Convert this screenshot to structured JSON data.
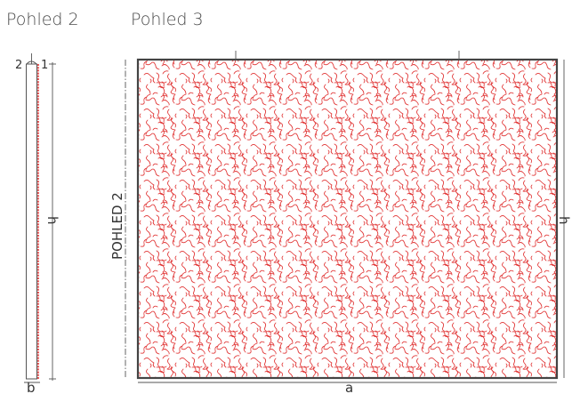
{
  "views": {
    "side": {
      "title": "Pohled 2"
    },
    "front": {
      "title": "Pohled 3"
    }
  },
  "labels": {
    "section_marker": "POHLED 2",
    "layer_left": "2",
    "layer_right": "1",
    "height": "h",
    "thickness": "b",
    "width": "a"
  },
  "colors": {
    "pattern": "#e03030",
    "outline": "#444444",
    "dimension": "#555555"
  }
}
